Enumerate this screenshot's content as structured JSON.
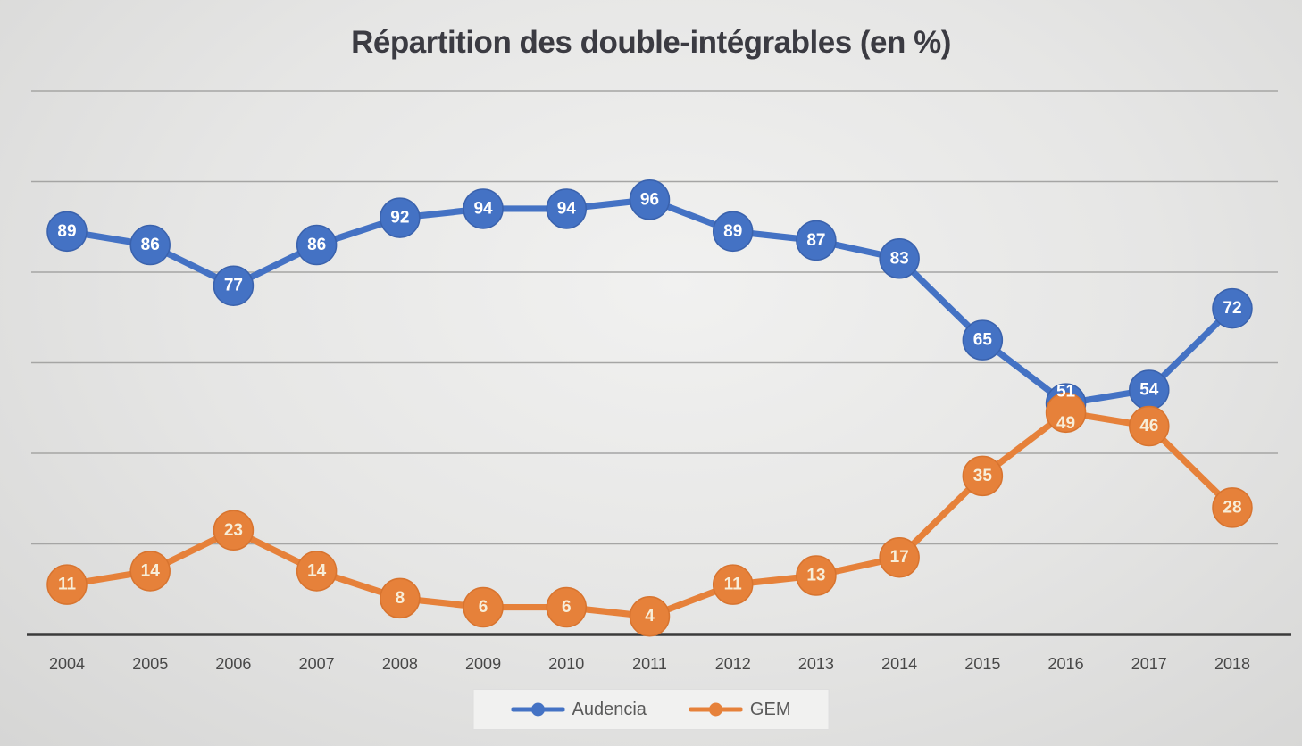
{
  "title": "Répartition des double-intégrables (en %)",
  "colors": {
    "gridline": "#a5a5a4",
    "axis": "#3b3b3b",
    "title_text": "#3b3b42",
    "tick_text": "#474747",
    "legend_text": "#595959",
    "legend_bg": "#f1f1f0",
    "legend_border": "#dedede"
  },
  "chart_data": {
    "type": "line",
    "title": "Répartition des double-intégrables (en %)",
    "categories": [
      "2004",
      "2005",
      "2006",
      "2007",
      "2008",
      "2009",
      "2010",
      "2011",
      "2012",
      "2013",
      "2014",
      "2015",
      "2016",
      "2017",
      "2018"
    ],
    "series": [
      {
        "name": "Audencia",
        "color": "#4472c4",
        "edge_color": "#3a62ad",
        "label_color": "#ffffff",
        "values": [
          89,
          86,
          77,
          86,
          92,
          94,
          94,
          96,
          89,
          87,
          83,
          65,
          51,
          54,
          72
        ]
      },
      {
        "name": "GEM",
        "color": "#e6813a",
        "edge_color": "#d8742f",
        "label_color": "#f7eed9",
        "values": [
          11,
          14,
          23,
          14,
          8,
          6,
          6,
          4,
          11,
          13,
          17,
          35,
          49,
          46,
          28
        ]
      }
    ],
    "xlabel": "",
    "ylabel": "",
    "ylim": [
      0,
      120
    ],
    "gridline_step": 20,
    "grid": "horizontal-only",
    "y_axis_labels": "none",
    "legend_position": "bottom-center",
    "data_labels": "centered-on-markers"
  }
}
